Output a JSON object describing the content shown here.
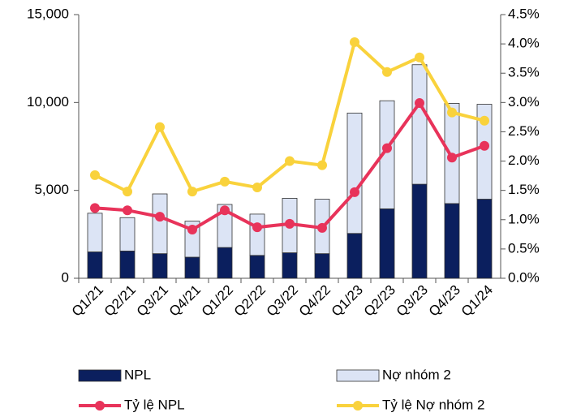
{
  "chart_data": {
    "type": "combo",
    "categories": [
      "Q1/21",
      "Q2/21",
      "Q3/21",
      "Q4/21",
      "Q1/22",
      "Q2/22",
      "Q3/22",
      "Q4/22",
      "Q1/23",
      "Q2/23",
      "Q3/23",
      "Q4/23",
      "Q1/24"
    ],
    "series": [
      {
        "name": "NPL",
        "type": "bar",
        "color": "#0b1f5e",
        "values": [
          1500,
          1550,
          1400,
          1200,
          1750,
          1300,
          1450,
          1400,
          2550,
          3950,
          5350,
          4250,
          4500
        ]
      },
      {
        "name": "Nợ nhóm 2",
        "type": "bar",
        "color": "#dce4f5",
        "values": [
          2200,
          1900,
          3400,
          2050,
          2450,
          2350,
          3100,
          3100,
          6850,
          6150,
          6800,
          5700,
          5400
        ]
      },
      {
        "name": "Tỷ lệ NPL",
        "type": "line",
        "axis": "y2",
        "color": "#e8335a",
        "values": [
          1.2,
          1.16,
          1.05,
          0.83,
          1.16,
          0.87,
          0.93,
          0.86,
          1.47,
          2.22,
          2.99,
          2.06,
          2.26
        ]
      },
      {
        "name": "Tỷ lệ Nợ nhóm 2",
        "type": "line",
        "axis": "y2",
        "color": "#f9d23c",
        "values": [
          1.76,
          1.48,
          2.58,
          1.48,
          1.65,
          1.55,
          2.0,
          1.93,
          4.03,
          3.52,
          3.77,
          2.83,
          2.69
        ]
      }
    ],
    "ylim": [
      0,
      15000
    ],
    "yticks": [
      0,
      {
        "value": 5000,
        "label": "5,000"
      },
      {
        "value": 10000,
        "label": "10,000"
      },
      {
        "value": 15000,
        "label": "15,000"
      }
    ],
    "y2lim": [
      0,
      4.5
    ],
    "y2ticks": [
      {
        "value": 0,
        "label": "0.0%"
      },
      {
        "value": 0.5,
        "label": "0.5%"
      },
      {
        "value": 1,
        "label": "1.0%"
      },
      {
        "value": 1.5,
        "label": "1.5%"
      },
      {
        "value": 2,
        "label": "2.0%"
      },
      {
        "value": 2.5,
        "label": "2.5%"
      },
      {
        "value": 3,
        "label": "3.0%"
      },
      {
        "value": 3.5,
        "label": "3.5%"
      },
      {
        "value": 4,
        "label": "4.0%"
      },
      {
        "value": 4.5,
        "label": "4.5%"
      }
    ]
  }
}
